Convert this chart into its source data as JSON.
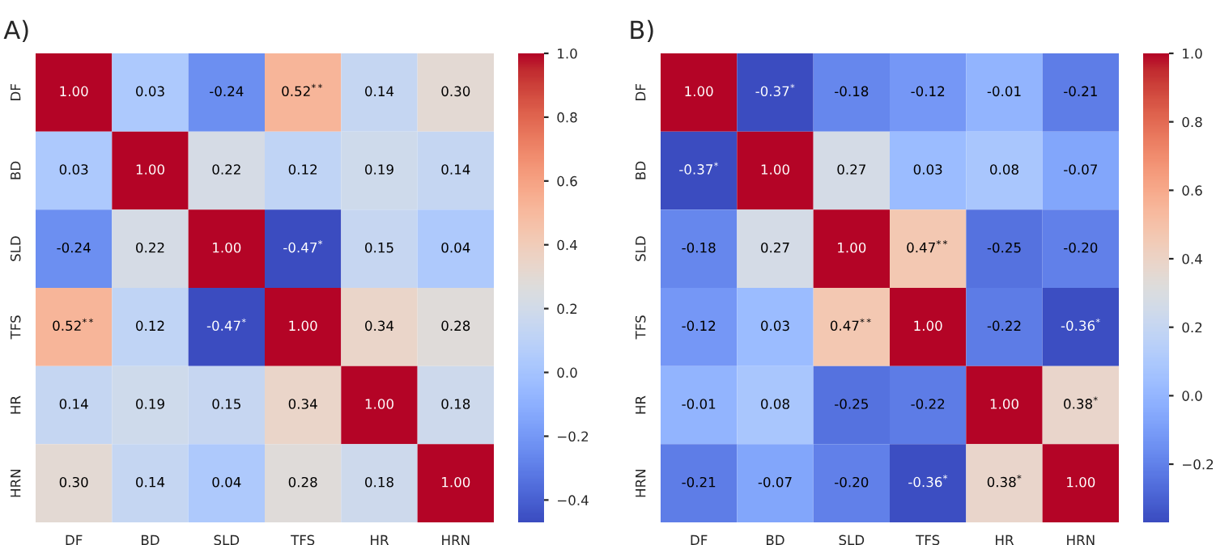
{
  "chart_data": [
    {
      "type": "heatmap",
      "title": "A)",
      "categories": [
        "DF",
        "BD",
        "SLD",
        "TFS",
        "HR",
        "HRN"
      ],
      "y_categories": [
        "DF",
        "BD",
        "SLD",
        "TFS",
        "HR",
        "HRN"
      ],
      "cells": [
        [
          1.0,
          0.03,
          -0.24,
          0.52,
          0.14,
          0.3
        ],
        [
          0.03,
          1.0,
          0.22,
          0.12,
          0.19,
          0.14
        ],
        [
          -0.24,
          0.22,
          1.0,
          -0.47,
          0.15,
          0.04
        ],
        [
          0.52,
          0.12,
          -0.47,
          1.0,
          0.34,
          0.28
        ],
        [
          0.14,
          0.19,
          0.15,
          0.34,
          1.0,
          0.18
        ],
        [
          0.3,
          0.14,
          0.04,
          0.28,
          0.18,
          1.0
        ]
      ],
      "cell_labels": [
        [
          "1.00",
          "0.03",
          "-0.24",
          "0.52$^{**}$",
          "0.14",
          "0.30"
        ],
        [
          "0.03",
          "1.00",
          "0.22",
          "0.12",
          "0.19",
          "0.14"
        ],
        [
          "-0.24",
          "0.22",
          "1.00",
          "-0.47$^{*}$",
          "0.15",
          "0.04"
        ],
        [
          "0.52$^{**}$",
          "0.12",
          "-0.47$^{*}$",
          "1.00",
          "0.34",
          "0.28"
        ],
        [
          "0.14",
          "0.19",
          "0.15",
          "0.34",
          "1.00",
          "0.18"
        ],
        [
          "0.30",
          "0.14",
          "0.04",
          "0.28",
          "0.18",
          "1.00"
        ]
      ],
      "clim": [
        -0.47,
        1.0
      ],
      "cticks": [
        {
          "value": -0.4,
          "label": "−0.4"
        },
        {
          "value": -0.2,
          "label": "−0.2"
        },
        {
          "value": 0,
          "label": "0.0"
        },
        {
          "value": 0.2,
          "label": "0.2"
        },
        {
          "value": 0.4,
          "label": "0.4"
        },
        {
          "value": 0.6,
          "label": "0.6"
        },
        {
          "value": 0.8,
          "label": "0.8"
        },
        {
          "value": 1,
          "label": "1.0"
        }
      ]
    },
    {
      "type": "heatmap",
      "title": "B)",
      "categories": [
        "DF",
        "BD",
        "SLD",
        "TFS",
        "HR",
        "HRN"
      ],
      "y_categories": [
        "DF",
        "BD",
        "SLD",
        "TFS",
        "HR",
        "HRN"
      ],
      "cells": [
        [
          1.0,
          -0.37,
          -0.18,
          -0.12,
          -0.01,
          -0.21
        ],
        [
          -0.37,
          1.0,
          0.27,
          0.03,
          0.08,
          -0.07
        ],
        [
          -0.18,
          0.27,
          1.0,
          0.47,
          -0.25,
          -0.2
        ],
        [
          -0.12,
          0.03,
          0.47,
          1.0,
          -0.22,
          -0.36
        ],
        [
          -0.01,
          0.08,
          -0.25,
          -0.22,
          1.0,
          0.38
        ],
        [
          -0.21,
          -0.07,
          -0.2,
          -0.36,
          0.38,
          1.0
        ]
      ],
      "cell_labels": [
        [
          "1.00",
          "-0.37$^{*}$",
          "-0.18",
          "-0.12",
          "-0.01",
          "-0.21"
        ],
        [
          "-0.37$^{*}$",
          "1.00",
          "0.27",
          "0.03",
          "0.08",
          "-0.07"
        ],
        [
          "-0.18",
          "0.27",
          "1.00",
          "0.47$^{**}$",
          "-0.25",
          "-0.20"
        ],
        [
          "-0.12",
          "0.03",
          "0.47$^{**}$",
          "1.00",
          "-0.22",
          "-0.36$^{*}$"
        ],
        [
          "-0.01",
          "0.08",
          "-0.25",
          "-0.22",
          "1.00",
          "0.38$^{*}$"
        ],
        [
          "-0.21",
          "-0.07",
          "-0.20",
          "-0.36$^{*}$",
          "0.38$^{*}$",
          "1.00"
        ]
      ],
      "clim": [
        -0.37,
        1.0
      ],
      "cticks": [
        {
          "value": -0.2,
          "label": "−0.2"
        },
        {
          "value": 0,
          "label": "0.0"
        },
        {
          "value": 0.2,
          "label": "0.2"
        },
        {
          "value": 0.4,
          "label": "0.4"
        },
        {
          "value": 0.6,
          "label": "0.6"
        },
        {
          "value": 0.8,
          "label": "0.8"
        },
        {
          "value": 1,
          "label": "1.0"
        }
      ]
    }
  ]
}
